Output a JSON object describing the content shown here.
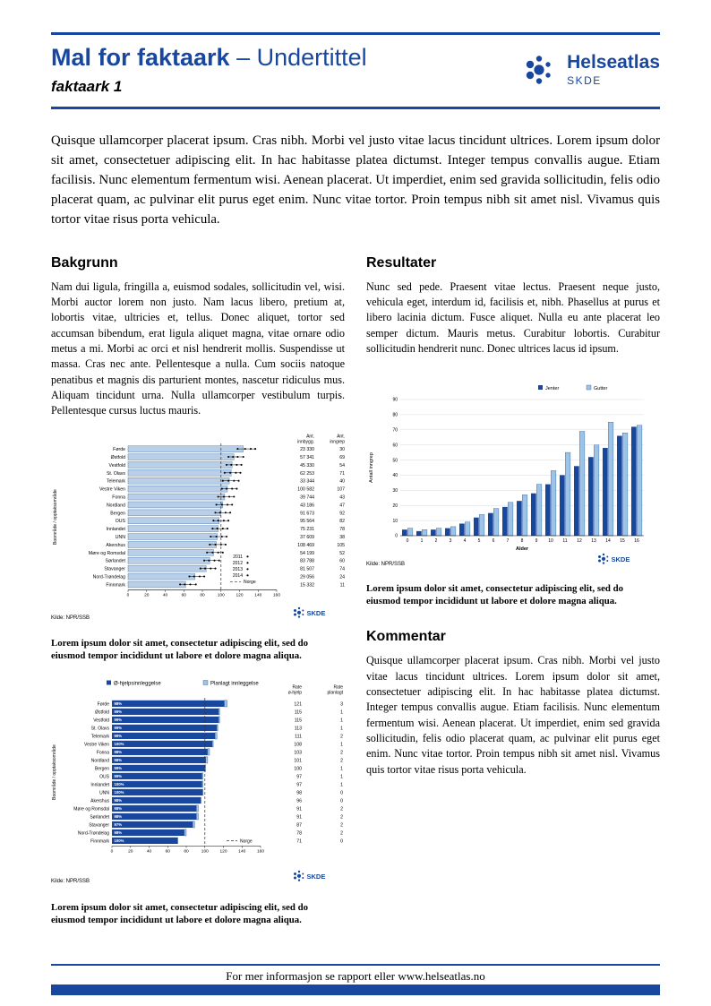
{
  "header": {
    "title": "Mal for faktaark",
    "subtitle": "– Undertittel",
    "doc_label": "faktaark 1",
    "logo_name": "Helseatlas",
    "logo_sub": "SKDE",
    "brand_color": "#17479E"
  },
  "intro": "Quisque ullamcorper placerat ipsum. Cras nibh. Morbi vel justo vitae lacus tincidunt ultrices. Lorem ipsum dolor sit amet, consectetuer adipiscing elit. In hac habitasse platea dictumst. Integer tempus convallis augue. Etiam facilisis. Nunc elementum fermentum wisi. Aenean placerat. Ut imperdiet, enim sed gravida sollicitudin, felis odio placerat quam, ac pulvinar elit purus eget enim. Nunc vitae tortor. Proin tempus nibh sit amet nisl. Vivamus quis tortor vitae risus porta vehicula.",
  "sections": {
    "bakgrunn": {
      "heading": "Bakgrunn",
      "body": "Nam dui ligula, fringilla a, euismod sodales, sollicitudin vel, wisi. Morbi auctor lorem non justo. Nam lacus libero, pretium at, lobortis vitae, ultricies et, tellus. Donec aliquet, tortor sed accumsan bibendum, erat ligula aliquet magna, vitae ornare odio metus a mi. Morbi ac orci et nisl hendrerit mollis. Suspendisse ut massa. Cras nec ante. Pellentesque a nulla. Cum sociis natoque penatibus et magnis dis parturient montes, nascetur ridiculus mus. Aliquam tincidunt urna. Nulla ullamcorper vestibulum turpis. Pellentesque cursus luctus mauris."
    },
    "resultater": {
      "heading": "Resultater",
      "body": "Nunc sed pede. Praesent vitae lectus. Praesent neque justo, vehicula eget, interdum id, facilisis et, nibh. Phasellus at purus et libero lacinia dictum. Fusce aliquet. Nulla eu ante placerat leo semper dictum. Mauris metus. Curabitur lobortis. Curabitur sollicitudin hendrerit nunc. Donec ultrices lacus id ipsum."
    },
    "kommentar": {
      "heading": "Kommentar",
      "body": "Quisque ullamcorper placerat ipsum. Cras nibh. Morbi vel justo vitae lacus tincidunt ultrices. Lorem ipsum dolor sit amet, consectetuer adipiscing elit. In hac habitasse platea dictumst. Integer tempus convallis augue. Etiam facilisis. Nunc elementum fermentum wisi. Aenean placerat. Ut imperdiet, enim sed gravida sollicitudin, felis odio placerat quam, ac pulvinar elit purus eget enim. Nunc vitae tortor. Proin tempus nibh sit amet nisl. Vivamus quis tortor vitae risus porta vehicula."
    }
  },
  "captions": {
    "chart1": "Lorem ipsum dolor sit amet, consectetur adipiscing elit, sed do eiusmod tempor incididunt ut labore et dolore magna aliqua.",
    "chart2": "Lorem ipsum dolor sit amet, consectetur adipiscing elit, sed do eiusmod tempor incididunt ut labore et dolore magna aliqua.",
    "chart3": "Lorem ipsum dolor sit amet, consectetur adipiscing elit, sed do eiusmod tempor incididunt ut labore et dolore magna aliqua."
  },
  "footer": {
    "text": "For mer informasjon se rapport eller www.helseatlas.no"
  },
  "chart_data": [
    {
      "id": "chart1",
      "type": "bar",
      "orientation": "horizontal",
      "ylabel": "Boområde / opptaksområde",
      "xlim": [
        0,
        160
      ],
      "xticks": [
        0,
        20,
        40,
        60,
        80,
        100,
        120,
        140,
        160
      ],
      "col_headers": [
        "Ant. innbygg.",
        "Ant. inngrep"
      ],
      "legend": [
        "2011",
        "2012",
        "2013",
        "2014"
      ],
      "norge_label": "Norge",
      "norge_value": 100,
      "source": "Kilde: NPR/SSB",
      "logo": "SKDE",
      "bar_color": "#B9CFE8",
      "rows": [
        {
          "label": "Førde",
          "value": 124,
          "points": [
            118,
            126,
            132,
            137
          ],
          "innbygg": "23 330",
          "inngrep": "30"
        },
        {
          "label": "Østfold",
          "value": 114,
          "points": [
            108,
            113,
            118,
            124
          ],
          "innbygg": "57 341",
          "inngrep": "69"
        },
        {
          "label": "Vestfold",
          "value": 112,
          "points": [
            106,
            111,
            117,
            122
          ],
          "innbygg": "45 330",
          "inngrep": "54"
        },
        {
          "label": "St. Olavs",
          "value": 111,
          "points": [
            104,
            110,
            116,
            121
          ],
          "innbygg": "62 253",
          "inngrep": "71"
        },
        {
          "label": "Telemark",
          "value": 109,
          "points": [
            102,
            108,
            114,
            119
          ],
          "innbygg": "33 344",
          "inngrep": "40"
        },
        {
          "label": "Vestre Viken",
          "value": 107,
          "points": [
            101,
            106,
            112,
            117
          ],
          "innbygg": "100 582",
          "inngrep": "107"
        },
        {
          "label": "Fonna",
          "value": 104,
          "points": [
            97,
            103,
            109,
            114
          ],
          "innbygg": "39 744",
          "inngrep": "43"
        },
        {
          "label": "Nordland",
          "value": 102,
          "points": [
            95,
            101,
            107,
            112
          ],
          "innbygg": "43 186",
          "inngrep": "47"
        },
        {
          "label": "Bergen",
          "value": 100,
          "points": [
            94,
            99,
            105,
            110
          ],
          "innbygg": "91 673",
          "inngrep": "92"
        },
        {
          "label": "OUS",
          "value": 98,
          "points": [
            92,
            97,
            103,
            108
          ],
          "innbygg": "95 564",
          "inngrep": "82"
        },
        {
          "label": "Innlandet",
          "value": 97,
          "points": [
            91,
            96,
            102,
            107
          ],
          "innbygg": "75 231",
          "inngrep": "78"
        },
        {
          "label": "UNN",
          "value": 96,
          "points": [
            89,
            95,
            101,
            106
          ],
          "innbygg": "37 609",
          "inngrep": "38"
        },
        {
          "label": "Akershus",
          "value": 95,
          "points": [
            88,
            94,
            100,
            105
          ],
          "innbygg": "108 469",
          "inngrep": "105"
        },
        {
          "label": "Møre og Romsdal",
          "value": 92,
          "points": [
            85,
            91,
            97,
            102
          ],
          "innbygg": "54 199",
          "inngrep": "52"
        },
        {
          "label": "Sørlandet",
          "value": 88,
          "points": [
            82,
            87,
            93,
            98
          ],
          "innbygg": "83 788",
          "inngrep": "60"
        },
        {
          "label": "Stavanger",
          "value": 84,
          "points": [
            78,
            83,
            89,
            94
          ],
          "innbygg": "81 507",
          "inngrep": "74"
        },
        {
          "label": "Nord-Trøndelag",
          "value": 72,
          "points": [
            66,
            71,
            77,
            82
          ],
          "innbygg": "29 056",
          "inngrep": "24"
        },
        {
          "label": "Finnmark",
          "value": 62,
          "points": [
            56,
            61,
            67,
            73
          ],
          "innbygg": "15 332",
          "inngrep": "11"
        }
      ]
    },
    {
      "id": "chart2",
      "type": "stacked-bar",
      "orientation": "horizontal",
      "ylabel": "Boområde / opptaksområde",
      "xlim": [
        0,
        160
      ],
      "xticks": [
        0,
        20,
        40,
        60,
        80,
        100,
        120,
        140,
        160
      ],
      "legend": [
        "Ø-hjelpsinnleggelse",
        "Planlagt innleggelse"
      ],
      "col_headers": [
        "Rate ø-hjelp",
        "Rate planlagt"
      ],
      "norge_label": "Norge",
      "norge_value": 100,
      "source": "Kilde: NPR/SSB",
      "logo": "SKDE",
      "colors": {
        "ohjelp": "#17479E",
        "planlagt": "#9DC3E6"
      },
      "rows": [
        {
          "label": "Førde",
          "pct": "98%",
          "ohjelp": 121,
          "planlagt": 3
        },
        {
          "label": "Østfold",
          "pct": "99%",
          "ohjelp": 115,
          "planlagt": 1
        },
        {
          "label": "Vestfold",
          "pct": "99%",
          "ohjelp": 115,
          "planlagt": 1
        },
        {
          "label": "St. Olavs",
          "pct": "99%",
          "ohjelp": 113,
          "planlagt": 1
        },
        {
          "label": "Telemark",
          "pct": "99%",
          "ohjelp": 111,
          "planlagt": 2
        },
        {
          "label": "Vestre Viken",
          "pct": "100%",
          "ohjelp": 108,
          "planlagt": 1
        },
        {
          "label": "Fonna",
          "pct": "98%",
          "ohjelp": 103,
          "planlagt": 2
        },
        {
          "label": "Nordland",
          "pct": "98%",
          "ohjelp": 101,
          "planlagt": 2
        },
        {
          "label": "Bergen",
          "pct": "99%",
          "ohjelp": 100,
          "planlagt": 1
        },
        {
          "label": "OUS",
          "pct": "99%",
          "ohjelp": 97,
          "planlagt": 1
        },
        {
          "label": "Innlandet",
          "pct": "100%",
          "ohjelp": 97,
          "planlagt": 1
        },
        {
          "label": "UNN",
          "pct": "100%",
          "ohjelp": 98,
          "planlagt": 0
        },
        {
          "label": "Akershus",
          "pct": "98%",
          "ohjelp": 96,
          "planlagt": 0
        },
        {
          "label": "Møre og Romsdal",
          "pct": "98%",
          "ohjelp": 91,
          "planlagt": 2
        },
        {
          "label": "Sørlandet",
          "pct": "98%",
          "ohjelp": 91,
          "planlagt": 2
        },
        {
          "label": "Stavanger",
          "pct": "97%",
          "ohjelp": 87,
          "planlagt": 2
        },
        {
          "label": "Nord-Trøndelag",
          "pct": "98%",
          "ohjelp": 78,
          "planlagt": 2
        },
        {
          "label": "Finnmark",
          "pct": "100%",
          "ohjelp": 71,
          "planlagt": 0
        }
      ]
    },
    {
      "id": "chart3",
      "type": "bar",
      "grouped": true,
      "xlabel": "Alder",
      "ylabel": "Antall inngrep",
      "ylim": [
        0,
        90
      ],
      "yticks": [
        0,
        10,
        20,
        30,
        40,
        50,
        60,
        70,
        80,
        90
      ],
      "categories": [
        "0",
        "1",
        "2",
        "3",
        "4",
        "5",
        "6",
        "7",
        "8",
        "9",
        "10",
        "11",
        "12",
        "13",
        "14",
        "15",
        "16"
      ],
      "series": [
        {
          "name": "Jenter",
          "color": "#17479E",
          "values": [
            4,
            3,
            4,
            5,
            8,
            12,
            15,
            19,
            23,
            28,
            34,
            40,
            46,
            52,
            58,
            66,
            72
          ]
        },
        {
          "name": "Gutter",
          "color": "#9DC3E6",
          "values": [
            5,
            4,
            5,
            6,
            9,
            14,
            18,
            22,
            27,
            34,
            43,
            55,
            69,
            60,
            75,
            68,
            73
          ]
        }
      ],
      "source": "Kilde: NPR/SSB",
      "logo": "SKDE"
    }
  ]
}
